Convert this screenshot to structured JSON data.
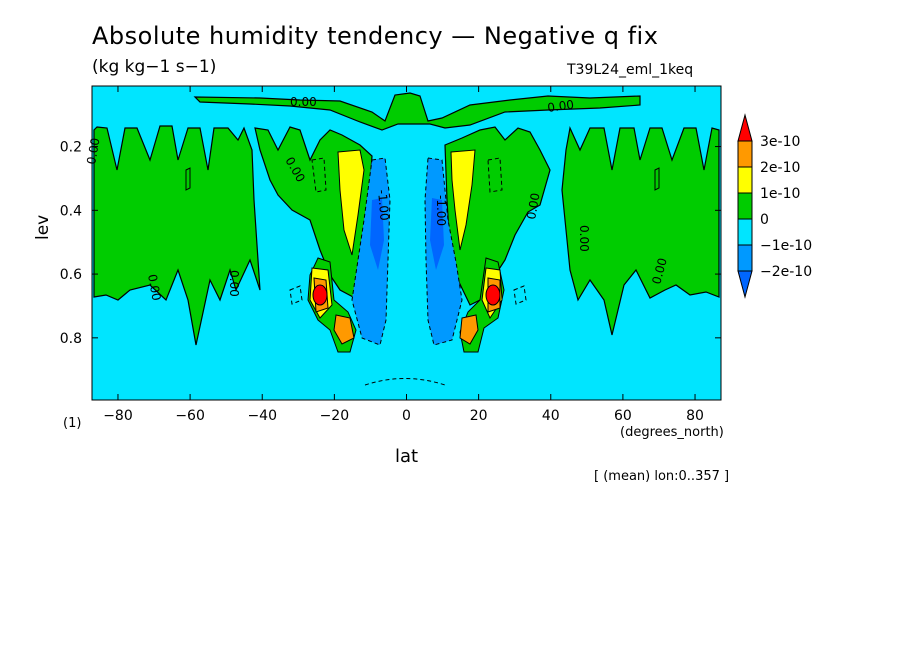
{
  "header": {
    "title": "Absolute humidity tendency — Negative q fix",
    "units": "(kg kg−1 s−1)",
    "experiment": "T39L24_eml_1keq",
    "footnote": "[ (mean) lon:0..357 ]",
    "scale_factor": "(1)"
  },
  "chart_data": {
    "type": "heatmap",
    "xlabel": "lat",
    "xunits": "(degrees_north)",
    "ylabel": "lev",
    "xlim": [
      -87.2,
      87.2
    ],
    "ylim": [
      0.995,
      0.01
    ],
    "xticks": [
      -80,
      -60,
      -40,
      -20,
      0,
      20,
      40,
      60,
      80
    ],
    "yticks": [
      0.2,
      0.4,
      0.6,
      0.8
    ],
    "colorbar": {
      "levels": [
        "3e-10",
        "2e-10",
        "1e-10",
        "0",
        "−1e-10",
        "−2e-10"
      ],
      "colors": [
        "#ff0000",
        "#ff9900",
        "#ffff00",
        "#00cc00",
        "#00e5ff",
        "#0099ff",
        "#0066ff"
      ]
    },
    "contour_labels": [
      "0.00",
      "0.00",
      "0.00",
      "0.00",
      "0.00",
      "0.00",
      "0.00",
      "0.00",
      "0.00",
      "-1.00",
      "-1.00"
    ],
    "colors": {
      "background": "#00e5ff",
      "positive_small": "#00cc00",
      "positive_mid": "#ffff00",
      "positive_high": "#ff9900",
      "positive_max": "#ff0000",
      "negative_small": "#0099ff",
      "negative_large": "#0066ff"
    }
  }
}
